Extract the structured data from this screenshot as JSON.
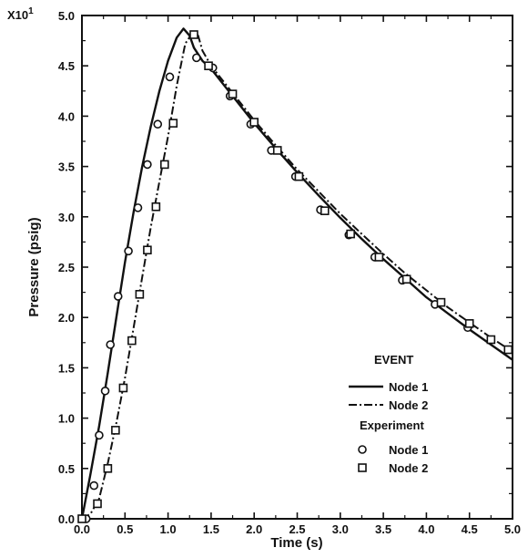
{
  "chart_data": {
    "type": "line",
    "xlabel": "Time (s)",
    "ylabel": "Pressure (psig)",
    "y_multiplier": "X10",
    "y_multiplier_exp": "1",
    "xlim": [
      0,
      5.0
    ],
    "ylim": [
      0,
      5.0
    ],
    "x_ticks": [
      "0.0",
      "0.5",
      "1.0",
      "1.5",
      "2.0",
      "2.5",
      "3.0",
      "3.5",
      "4.0",
      "4.5",
      "5.0"
    ],
    "y_ticks": [
      "0.0",
      "0.5",
      "1.0",
      "1.5",
      "2.0",
      "2.5",
      "3.0",
      "3.5",
      "4.0",
      "4.5",
      "5.0"
    ],
    "legend": {
      "position": "lower-right",
      "group1_title": "EVENT",
      "group2_title": "Experiment",
      "entries": [
        {
          "label": "Node  1"
        },
        {
          "label": "Node  2"
        },
        {
          "label": "Node  1"
        },
        {
          "label": "Node  2"
        }
      ]
    },
    "series": [
      {
        "style": "solid",
        "x": [
          0.0,
          0.1,
          0.2,
          0.3,
          0.4,
          0.5,
          0.6,
          0.7,
          0.8,
          0.9,
          1.0,
          1.1,
          1.18,
          1.25,
          1.3,
          1.4,
          1.5,
          1.75,
          2.0,
          2.25,
          2.5,
          2.75,
          3.0,
          3.25,
          3.5,
          3.75,
          4.0,
          4.25,
          4.5,
          4.75,
          5.0
        ],
        "y": [
          0.0,
          0.45,
          0.92,
          1.45,
          2.0,
          2.55,
          3.05,
          3.5,
          3.9,
          4.25,
          4.55,
          4.78,
          4.87,
          4.8,
          4.68,
          4.55,
          4.47,
          4.2,
          3.93,
          3.68,
          3.44,
          3.21,
          2.99,
          2.78,
          2.58,
          2.39,
          2.2,
          2.04,
          1.88,
          1.73,
          1.58
        ]
      },
      {
        "style": "dash-dot",
        "x": [
          0.0,
          0.1,
          0.2,
          0.3,
          0.4,
          0.5,
          0.6,
          0.7,
          0.8,
          0.9,
          1.0,
          1.1,
          1.2,
          1.3,
          1.35,
          1.4,
          1.5,
          1.75,
          2.0,
          2.25,
          2.5,
          2.75,
          3.0,
          3.25,
          3.5,
          3.75,
          4.0,
          4.25,
          4.5,
          4.75,
          5.0
        ],
        "y": [
          0.0,
          0.05,
          0.2,
          0.55,
          0.95,
          1.4,
          1.9,
          2.4,
          2.9,
          3.35,
          3.8,
          4.3,
          4.72,
          4.85,
          4.8,
          4.65,
          4.5,
          4.23,
          3.96,
          3.71,
          3.47,
          3.25,
          3.03,
          2.83,
          2.63,
          2.44,
          2.27,
          2.1,
          1.95,
          1.8,
          1.66
        ]
      },
      {
        "style": "circle",
        "x": [
          0.05,
          0.14,
          0.2,
          0.27,
          0.33,
          0.42,
          0.54,
          0.65,
          0.76,
          0.88,
          1.02,
          1.33,
          1.52,
          1.72,
          1.96,
          2.2,
          2.48,
          2.77,
          3.1,
          3.4,
          3.72,
          4.1,
          4.48
        ],
        "y": [
          0.0,
          0.33,
          0.83,
          1.27,
          1.73,
          2.21,
          2.66,
          3.09,
          3.52,
          3.92,
          4.39,
          4.58,
          4.48,
          4.2,
          3.92,
          3.66,
          3.4,
          3.07,
          2.82,
          2.6,
          2.37,
          2.13,
          1.9
        ]
      },
      {
        "style": "square",
        "x": [
          0.0,
          0.18,
          0.3,
          0.39,
          0.48,
          0.58,
          0.67,
          0.76,
          0.86,
          0.96,
          1.06,
          1.3,
          1.47,
          1.75,
          2.0,
          2.27,
          2.52,
          2.82,
          3.12,
          3.45,
          3.77,
          4.17,
          4.5,
          4.75,
          4.95
        ],
        "y": [
          0.0,
          0.15,
          0.5,
          0.88,
          1.3,
          1.77,
          2.23,
          2.67,
          3.1,
          3.52,
          3.93,
          4.81,
          4.5,
          4.22,
          3.94,
          3.66,
          3.4,
          3.06,
          2.83,
          2.6,
          2.38,
          2.15,
          1.94,
          1.78,
          1.68
        ]
      }
    ]
  }
}
